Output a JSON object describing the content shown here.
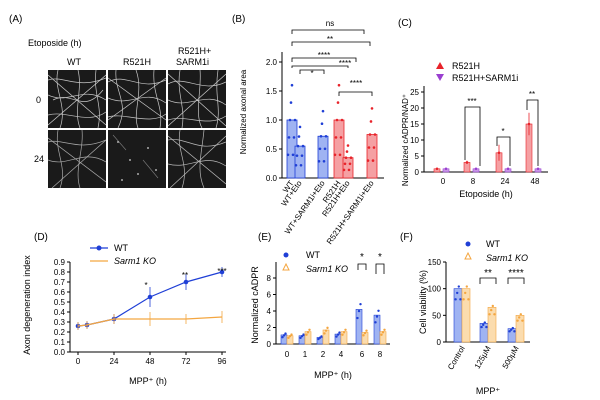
{
  "panels": {
    "A": {
      "letter": "(A)",
      "condition": "Etoposide (h)",
      "columns": [
        "WT",
        "R521H",
        "R521H+",
        "SARM1i"
      ],
      "rows": [
        "0",
        "24"
      ]
    },
    "B": {
      "letter": "(B)",
      "ylabel": "Normalized axonal area",
      "yticks": [
        "0.0",
        "0.5",
        "1.0",
        "1.5",
        "2.0"
      ],
      "categories": [
        "WT",
        "WT+Eto",
        "WT+SARM1i+Eto",
        "R521H",
        "R521H+Eto",
        "R521H+SARM1i+Eto"
      ],
      "sig": [
        "****",
        "*",
        "****",
        "****",
        "**",
        "ns"
      ]
    },
    "C": {
      "letter": "(C)",
      "ylabel": "Normalized cADPR/NAD⁺",
      "xlabel": "Etoposide (h)",
      "xticks": [
        "0",
        "8",
        "24",
        "48"
      ],
      "yticks": [
        "0",
        "5",
        "10",
        "15",
        "20",
        "25"
      ],
      "legend": [
        "R521H",
        "R521H+SARM1i"
      ],
      "sig": [
        "***",
        "*",
        "**"
      ]
    },
    "D": {
      "letter": "(D)",
      "ylabel": "Axon degeneration index",
      "xlabel": "MPP⁺ (h)",
      "xticks": [
        "0",
        "24",
        "48",
        "72",
        "96"
      ],
      "yticks": [
        "0.0",
        "0.1",
        "0.2",
        "0.3",
        "0.4",
        "0.5",
        "0.6",
        "0.7",
        "0.8",
        "0.9"
      ],
      "legend": [
        "WT",
        "Sarm1 KO"
      ],
      "sig": [
        "*",
        "**",
        "***"
      ]
    },
    "E": {
      "letter": "(E)",
      "ylabel": "Normalized cADPR",
      "xlabel": "MPP⁺ (h)",
      "xticks": [
        "0",
        "1",
        "2",
        "4",
        "6",
        "8"
      ],
      "yticks": [
        "0",
        "2",
        "4",
        "6",
        "8"
      ],
      "legend": [
        "WT",
        "Sarm1 KO"
      ],
      "sig": [
        "*",
        "*"
      ]
    },
    "F": {
      "letter": "(F)",
      "ylabel": "Cell viability (%)",
      "xlabel": "MPP⁺",
      "xticks": [
        "Control",
        "125μM",
        "500μM"
      ],
      "yticks": [
        "0",
        "50",
        "100",
        "150"
      ],
      "legend": [
        "WT",
        "Sarm1 KO"
      ],
      "sig": [
        "**",
        "****"
      ]
    }
  },
  "colors": {
    "blue": "#1f3fd6",
    "orange": "#f4a640",
    "red": "#e8232a",
    "purple": "#9a3fd0"
  },
  "chart_data": [
    {
      "id": "B",
      "type": "bar",
      "categories": [
        "WT",
        "WT+Eto",
        "WT+SARM1i+Eto",
        "R521H",
        "R521H+Eto",
        "R521H+SARM1i+Eto"
      ],
      "values": [
        1.0,
        0.55,
        0.72,
        1.0,
        0.35,
        0.75
      ],
      "ylabel": "Normalized axonal area",
      "ylim": [
        0,
        2.0
      ]
    },
    {
      "id": "C",
      "type": "bar",
      "categories": [
        "0",
        "8",
        "24",
        "48"
      ],
      "series": [
        {
          "name": "R521H",
          "values": [
            1,
            3,
            6,
            15
          ],
          "errors": [
            0.3,
            0.5,
            2.5,
            3.5
          ]
        },
        {
          "name": "R521H+SARM1i",
          "values": [
            1,
            1,
            1,
            1
          ],
          "errors": [
            0.2,
            0.2,
            0.2,
            0.2
          ]
        }
      ],
      "xlabel": "Etoposide (h)",
      "ylabel": "Normalized cADPR/NAD⁺",
      "ylim": [
        0,
        25
      ]
    },
    {
      "id": "D",
      "type": "line",
      "x": [
        0,
        6,
        24,
        48,
        72,
        96
      ],
      "series": [
        {
          "name": "WT",
          "values": [
            0.26,
            0.27,
            0.33,
            0.55,
            0.7,
            0.8
          ],
          "errors": [
            0.04,
            0.04,
            0.05,
            0.1,
            0.08,
            0.05
          ]
        },
        {
          "name": "Sarm1 KO",
          "values": [
            0.26,
            0.27,
            0.33,
            0.33,
            0.33,
            0.35
          ],
          "errors": [
            0.04,
            0.04,
            0.05,
            0.07,
            0.05,
            0.06
          ]
        }
      ],
      "xlabel": "MPP⁺ (h)",
      "ylabel": "Axon degeneration index",
      "ylim": [
        0,
        0.9
      ]
    },
    {
      "id": "E",
      "type": "bar",
      "categories": [
        "0",
        "1",
        "2",
        "4",
        "6",
        "8"
      ],
      "series": [
        {
          "name": "WT",
          "values": [
            1.1,
            1.0,
            0.8,
            1.2,
            4.2,
            3.5
          ]
        },
        {
          "name": "Sarm1 KO",
          "values": [
            1.0,
            1.5,
            1.7,
            1.5,
            1.4,
            1.5
          ]
        }
      ],
      "xlabel": "MPP⁺ (h)",
      "ylabel": "Normalized cADPR",
      "ylim": [
        0,
        8
      ]
    },
    {
      "id": "F",
      "type": "bar",
      "categories": [
        "Control",
        "125μM",
        "500μM"
      ],
      "series": [
        {
          "name": "WT",
          "values": [
            100,
            35,
            25
          ]
        },
        {
          "name": "Sarm1 KO",
          "values": [
            100,
            65,
            50
          ]
        }
      ],
      "xlabel": "MPP⁺",
      "ylabel": "Cell viability (%)",
      "ylim": [
        0,
        150
      ]
    }
  ]
}
